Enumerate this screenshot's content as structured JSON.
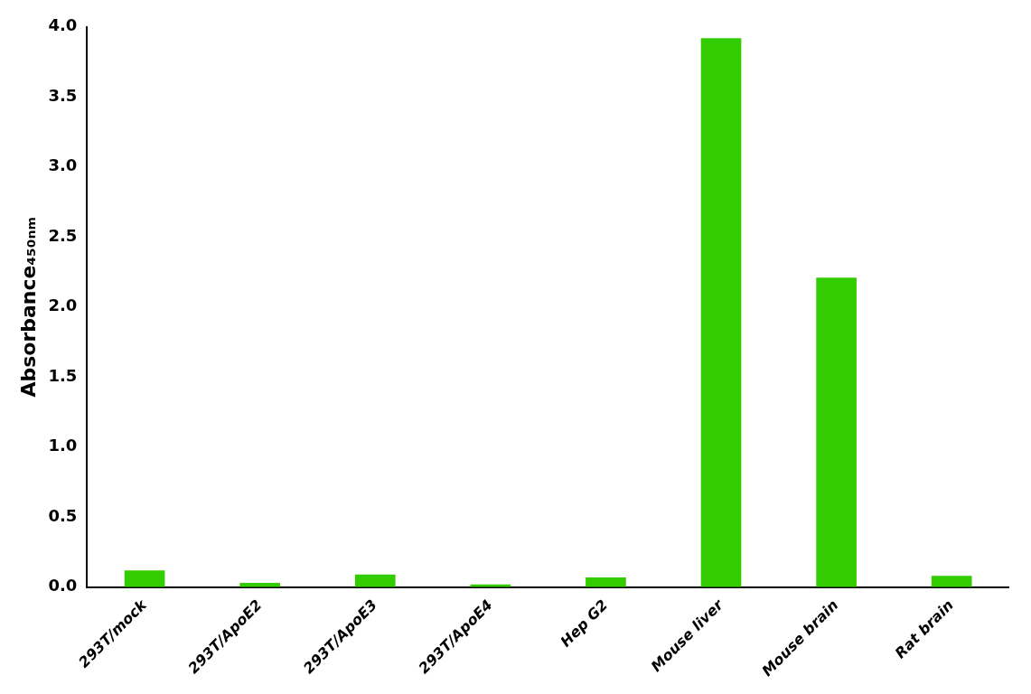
{
  "chart_data": {
    "type": "bar",
    "y_label": "Absorbance₄₅₀ₙₘ",
    "categories": [
      "293T/mock",
      "293T/ApoE2",
      "293T/ApoE3",
      "293T/ApoE4",
      "Hep G2",
      "Mouse liver",
      "Mouse brain",
      "Rat brain"
    ],
    "values": [
      0.12,
      0.03,
      0.09,
      0.02,
      0.07,
      3.92,
      2.21,
      0.08
    ],
    "color": "#33cc00",
    "ylim": [
      0,
      4.0
    ],
    "yticks": [
      {
        "value": 0,
        "label": "0.0"
      },
      0.5,
      {
        "value": 1,
        "label": "1.0"
      },
      1.5,
      {
        "value": 2,
        "label": "2.0"
      },
      2.5,
      {
        "value": 3,
        "label": "3.0"
      },
      3.5,
      {
        "value": 4,
        "label": "4.0"
      }
    ],
    "grid": false
  }
}
